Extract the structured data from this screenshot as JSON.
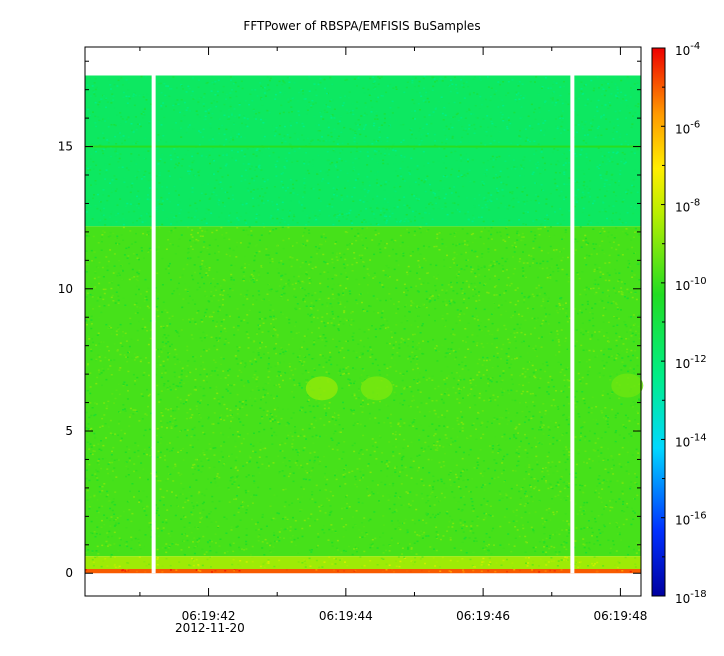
{
  "chart_data": {
    "type": "heatmap",
    "title": "FFTPower of RBSPA/EMFISIS  BuSamples",
    "xlabel": "",
    "ylabel": "",
    "x_ticks": [
      "06:19:42",
      "06:19:44",
      "06:19:46",
      "06:19:48"
    ],
    "x_date": "2012-11-20",
    "x_range_seconds": [
      40.2,
      48.3
    ],
    "x_tick_seconds": [
      42,
      44,
      46,
      48
    ],
    "y_ticks": [
      0,
      5,
      10,
      15
    ],
    "ylim": [
      -0.8,
      18.5
    ],
    "data_y_max": 17.5,
    "data_gaps_seconds": [
      41.2,
      47.3
    ],
    "colorbar": {
      "scale": "log",
      "range": [
        1e-18,
        0.0001
      ],
      "ticks": [
        {
          "base": "10",
          "exp": "-4"
        },
        {
          "base": "10",
          "exp": "-6"
        },
        {
          "base": "10",
          "exp": "-8"
        },
        {
          "base": "10",
          "exp": "-10"
        },
        {
          "base": "10",
          "exp": "-12"
        },
        {
          "base": "10",
          "exp": "-14"
        },
        {
          "base": "10",
          "exp": "-16"
        },
        {
          "base": "10",
          "exp": "-18"
        }
      ],
      "tick_exponents": [
        -4,
        -6,
        -8,
        -10,
        -12,
        -14,
        -16,
        -18
      ]
    },
    "bands": [
      {
        "y_from": 12.2,
        "y_to": 17.5,
        "log_power": -11.6
      },
      {
        "y_from": 0.6,
        "y_to": 12.2,
        "log_power": -9.8
      },
      {
        "y_from": 0.15,
        "y_to": 0.6,
        "log_power": -8.6
      },
      {
        "y_from": 0.0,
        "y_to": 0.15,
        "log_power": -5.0
      }
    ],
    "line_feature": {
      "y": 15.0,
      "log_power": -10.2
    },
    "blobs": [
      {
        "t": 43.65,
        "y": 6.5,
        "log_power": -8.8
      },
      {
        "t": 44.45,
        "y": 6.5,
        "log_power": -9.1
      },
      {
        "t": 48.1,
        "y": 6.6,
        "log_power": -9.3
      }
    ]
  }
}
